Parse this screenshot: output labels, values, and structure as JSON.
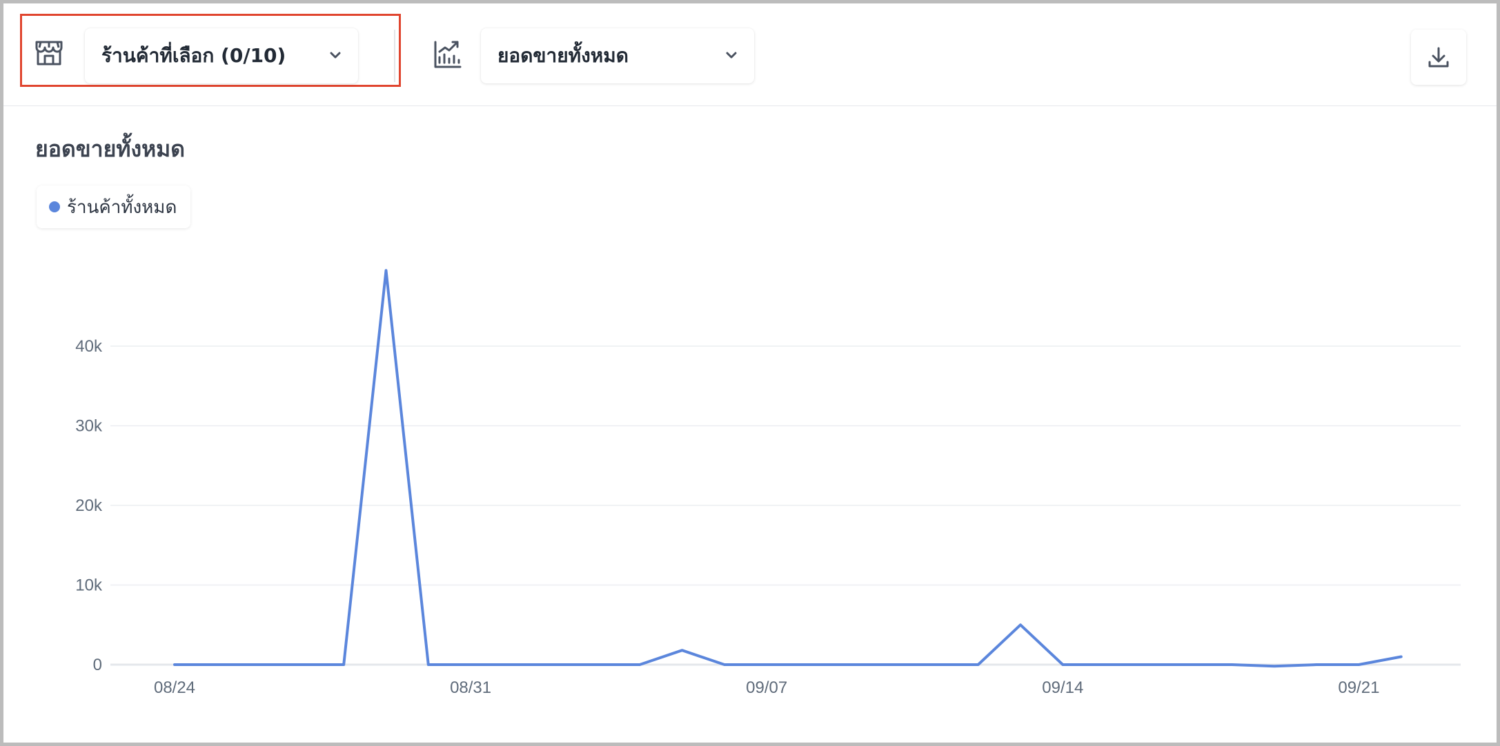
{
  "toolbar": {
    "store_select_label": "ร้านค้าที่เลือก (0/10)",
    "metric_select_label": "ยอดขายทั้งหมด",
    "icons": [
      "store-icon",
      "chart-trend-icon",
      "chevron-down-icon",
      "download-icon"
    ]
  },
  "colors": {
    "line": "#5b86dc",
    "highlight": "#e0452f",
    "grid": "#eceef1"
  },
  "chart_data": {
    "type": "line",
    "title": "ยอดขายทั้งหมด",
    "series": [
      {
        "name": "ร้านค้าทั้งหมด",
        "x": [
          "08/24",
          "08/25",
          "08/26",
          "08/27",
          "08/28",
          "08/29",
          "08/30",
          "08/31",
          "09/01",
          "09/02",
          "09/03",
          "09/04",
          "09/05",
          "09/06",
          "09/07",
          "09/08",
          "09/09",
          "09/10",
          "09/11",
          "09/12",
          "09/13",
          "09/14",
          "09/15",
          "09/16",
          "09/17",
          "09/18",
          "09/19",
          "09/20",
          "09/21",
          "09/22"
        ],
        "values": [
          0,
          0,
          0,
          0,
          0,
          49500,
          0,
          0,
          0,
          0,
          0,
          0,
          1800,
          0,
          0,
          0,
          0,
          0,
          0,
          0,
          5000,
          0,
          0,
          0,
          0,
          0,
          -200,
          0,
          0,
          1000
        ]
      }
    ],
    "x_tick_labels": [
      "08/24",
      "08/31",
      "09/07",
      "09/14",
      "09/21"
    ],
    "y_tick_labels": [
      "0",
      "10k",
      "20k",
      "30k",
      "40k"
    ],
    "y_ticks": [
      0,
      10000,
      20000,
      30000,
      40000
    ],
    "ylim": [
      0,
      50000
    ],
    "grid": true,
    "legend": "top-left"
  }
}
